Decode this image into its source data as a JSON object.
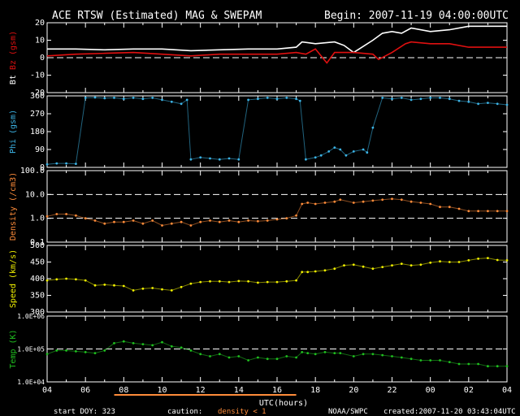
{
  "header": {
    "title": "ACE RTSW (Estimated) MAG & SWEPAM",
    "begin": "Begin: 2007-11-19 04:00:00UTC"
  },
  "footer": {
    "start_doy": "start DOY: 323",
    "caution_label": "caution:",
    "caution_text": "density < 1",
    "source": "NOAA/SWPC",
    "created": "created:2007-11-20 03:43:04UTC"
  },
  "colors": {
    "bt": "#ffffff",
    "bz": "#e01010",
    "phi": "#3cb4e6",
    "density": "#ff8c3a",
    "speed": "#f0f000",
    "temp": "#20c020",
    "caution": "#ff8c3a",
    "ref_line": "#ffffff"
  },
  "chart_data": [
    {
      "type": "line",
      "panel": "mag",
      "ylabel_parts": [
        "Bt",
        "Bz",
        "(gsm)"
      ],
      "ylim": [
        -20,
        20
      ],
      "yticks": [
        "20",
        "10",
        "0",
        "-10",
        "-20"
      ],
      "reference_lines": [
        0
      ],
      "x_unit": "UTC hours since 2007-11-19 04:00",
      "series": [
        {
          "name": "Bt",
          "color_key": "bt",
          "x": [
            0,
            1.5,
            3,
            4.5,
            6,
            7.5,
            9,
            10.5,
            12,
            13,
            13.3,
            14,
            15,
            15.5,
            16,
            17,
            17.5,
            18,
            18.5,
            19,
            20,
            21,
            22,
            23,
            24
          ],
          "y": [
            5,
            5,
            4.5,
            5,
            5,
            4,
            4.5,
            5,
            5,
            6,
            9,
            8,
            9,
            7,
            3,
            10,
            14,
            15,
            14,
            17,
            15,
            16,
            18,
            18,
            18
          ]
        },
        {
          "name": "Bz",
          "color_key": "bz",
          "x": [
            0,
            1.5,
            3,
            4.5,
            6,
            7.5,
            9,
            10.5,
            12,
            13,
            13.5,
            14,
            14.6,
            15,
            16,
            17,
            17.3,
            18,
            18.7,
            19,
            20,
            21,
            22,
            23,
            24
          ],
          "y": [
            1,
            2,
            2.5,
            3,
            2,
            1,
            2,
            2,
            2,
            3,
            2,
            5,
            -3,
            3,
            3,
            2,
            -1,
            3,
            8,
            9,
            8,
            8,
            6,
            6,
            6
          ]
        }
      ]
    },
    {
      "type": "scatter",
      "panel": "phi",
      "ylabel_parts": [
        "Phi",
        "(gsm)"
      ],
      "ylim": [
        0,
        360
      ],
      "yticks": [
        "360",
        "270",
        "180",
        "90",
        "0"
      ],
      "x_unit": "UTC hours since 2007-11-19 04:00",
      "series": [
        {
          "name": "Phi",
          "color_key": "phi",
          "x": [
            0,
            0.5,
            1,
            1.5,
            2,
            2.5,
            3,
            3.5,
            4,
            4.5,
            5,
            5.5,
            6,
            6.5,
            7,
            7.3,
            7.5,
            8,
            8.5,
            9,
            9.5,
            10,
            10.5,
            11,
            11.5,
            12,
            12.5,
            13,
            13.2,
            13.5,
            14,
            14.3,
            14.7,
            15,
            15.3,
            15.6,
            16,
            16.5,
            16.7,
            17,
            17.5,
            18,
            18.5,
            19,
            19.5,
            20,
            20.5,
            21,
            21.5,
            22,
            22.5,
            23,
            23.5,
            24
          ],
          "y": [
            15,
            20,
            20,
            18,
            350,
            352,
            348,
            350,
            345,
            350,
            345,
            350,
            340,
            330,
            320,
            340,
            40,
            50,
            45,
            40,
            45,
            40,
            340,
            345,
            350,
            345,
            350,
            345,
            335,
            40,
            50,
            60,
            80,
            100,
            90,
            60,
            80,
            90,
            75,
            200,
            350,
            345,
            350,
            340,
            345,
            350,
            350,
            345,
            335,
            330,
            320,
            325,
            320,
            315
          ]
        }
      ]
    },
    {
      "type": "scatter",
      "panel": "density",
      "ylabel_parts": [
        "Density",
        "(/cm3)"
      ],
      "y_scale": "log",
      "ylim": [
        0.1,
        100
      ],
      "yticks": [
        "100.0",
        "10.0",
        "1.0",
        "0.1"
      ],
      "reference_lines": [
        1,
        10
      ],
      "x_unit": "UTC hours since 2007-11-19 04:00",
      "series": [
        {
          "name": "Density",
          "color_key": "density",
          "x": [
            0,
            0.5,
            1,
            1.5,
            2,
            2.5,
            3,
            3.5,
            4,
            4.5,
            5,
            5.5,
            6,
            6.5,
            7,
            7.5,
            8,
            8.5,
            9,
            9.5,
            10,
            10.5,
            11,
            11.5,
            12,
            12.5,
            13,
            13.3,
            13.6,
            14,
            14.5,
            15,
            15.3,
            16,
            16.5,
            17,
            17.5,
            18,
            18.5,
            19,
            19.5,
            20,
            20.5,
            21,
            21.5,
            22,
            22.5,
            23,
            23.5,
            24
          ],
          "y": [
            1.2,
            1.5,
            1.5,
            1.3,
            1.0,
            0.8,
            0.6,
            0.7,
            0.7,
            0.8,
            0.6,
            0.8,
            0.5,
            0.6,
            0.7,
            0.5,
            0.7,
            0.8,
            0.7,
            0.8,
            0.7,
            0.8,
            0.75,
            0.8,
            0.9,
            1.0,
            1.3,
            4.0,
            4.5,
            4.0,
            4.5,
            5.0,
            6.0,
            4.5,
            5.0,
            5.5,
            6.0,
            6.5,
            6.0,
            5.0,
            4.5,
            4.0,
            3.0,
            3.0,
            2.5,
            2.0,
            2.0,
            2.0,
            2.0,
            2.0
          ]
        }
      ]
    },
    {
      "type": "scatter",
      "panel": "speed",
      "ylabel_parts": [
        "Speed",
        "(km/s)"
      ],
      "ylim": [
        300,
        500
      ],
      "yticks": [
        "500",
        "450",
        "400",
        "350",
        "300"
      ],
      "x_unit": "UTC hours since 2007-11-19 04:00",
      "series": [
        {
          "name": "Speed",
          "color_key": "speed",
          "x": [
            0,
            0.5,
            1,
            1.5,
            2,
            2.5,
            3,
            3.5,
            4,
            4.5,
            5,
            5.5,
            6,
            6.5,
            7,
            7.5,
            8,
            8.5,
            9,
            9.5,
            10,
            10.5,
            11,
            11.5,
            12,
            12.5,
            13,
            13.3,
            13.6,
            14,
            14.5,
            15,
            15.5,
            16,
            16.5,
            17,
            17.5,
            18,
            18.5,
            19,
            19.5,
            20,
            20.5,
            21,
            21.5,
            22,
            22.5,
            23,
            23.5,
            24
          ],
          "y": [
            395,
            398,
            400,
            398,
            395,
            380,
            382,
            380,
            378,
            365,
            370,
            372,
            368,
            365,
            375,
            385,
            390,
            392,
            392,
            390,
            393,
            392,
            388,
            390,
            390,
            392,
            395,
            420,
            420,
            422,
            425,
            430,
            440,
            442,
            436,
            430,
            435,
            440,
            445,
            440,
            442,
            448,
            452,
            450,
            450,
            455,
            460,
            462,
            456,
            455
          ]
        }
      ]
    },
    {
      "type": "scatter",
      "panel": "temp",
      "ylabel_parts": [
        "Temp",
        "(K)"
      ],
      "y_scale": "log",
      "ylim": [
        10000,
        1000000
      ],
      "yticks": [
        "1.0E+06",
        "1.0E+05",
        "1.0E+04"
      ],
      "reference_lines": [
        100000
      ],
      "x_unit": "UTC hours since 2007-11-19 04:00",
      "series": [
        {
          "name": "Temp",
          "color_key": "temp",
          "x": [
            0,
            0.5,
            1,
            1.5,
            2,
            2.5,
            3,
            3.5,
            4,
            4.5,
            5,
            5.5,
            6,
            6.5,
            7,
            7.5,
            8,
            8.5,
            9,
            9.5,
            10,
            10.5,
            11,
            11.5,
            12,
            12.5,
            13,
            13.3,
            13.6,
            14,
            14.5,
            15,
            15.3,
            16,
            16.5,
            17,
            17.5,
            18,
            18.5,
            19,
            19.5,
            20,
            20.5,
            21,
            21.5,
            22,
            22.5,
            23,
            23.5,
            24
          ],
          "y": [
            70000,
            90000,
            90000,
            85000,
            80000,
            75000,
            90000,
            150000,
            170000,
            150000,
            140000,
            130000,
            160000,
            120000,
            110000,
            90000,
            70000,
            60000,
            70000,
            55000,
            60000,
            45000,
            55000,
            50000,
            50000,
            60000,
            55000,
            80000,
            75000,
            70000,
            80000,
            75000,
            75000,
            60000,
            70000,
            70000,
            65000,
            60000,
            55000,
            50000,
            45000,
            45000,
            45000,
            40000,
            35000,
            35000,
            35000,
            30000,
            30000,
            30000
          ]
        }
      ]
    }
  ],
  "x_axis": {
    "ticks": [
      "04",
      "06",
      "08",
      "10",
      "12",
      "14",
      "16",
      "18",
      "20",
      "22",
      "00",
      "02",
      "04"
    ],
    "label": "UTC(hours)",
    "range_hours": [
      0,
      24
    ]
  },
  "caution_bars": [
    [
      3.5,
      13.0
    ]
  ]
}
